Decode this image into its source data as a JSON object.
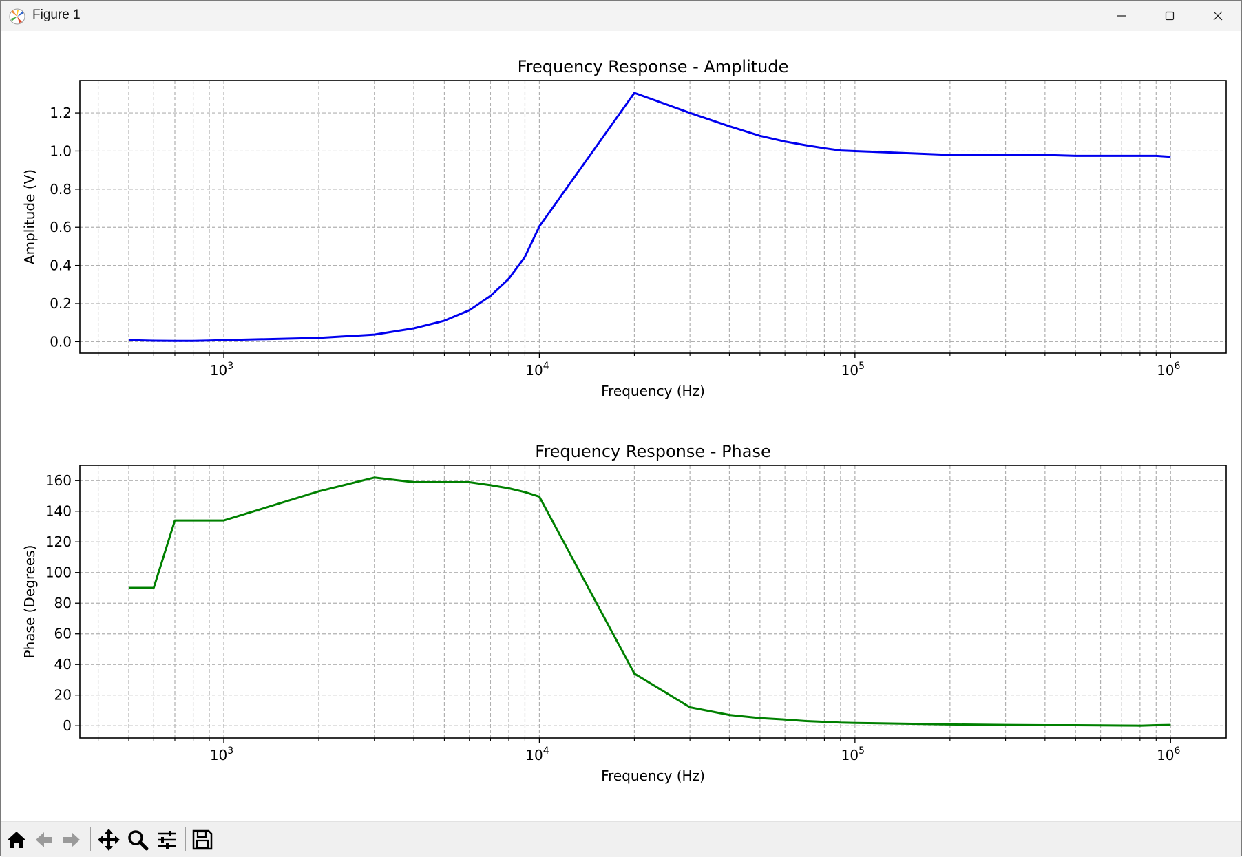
{
  "window": {
    "title": "Figure 1"
  },
  "toolbar": {
    "buttons": [
      {
        "name": "home-button",
        "icon": "home-icon"
      },
      {
        "name": "back-button",
        "icon": "arrow-left-icon"
      },
      {
        "name": "forward-button",
        "icon": "arrow-right-icon"
      },
      {
        "name": "pan-button",
        "icon": "move-icon"
      },
      {
        "name": "zoom-button",
        "icon": "magnifier-icon"
      },
      {
        "name": "configure-subplots-button",
        "icon": "sliders-icon"
      },
      {
        "name": "save-button",
        "icon": "floppy-disk-icon"
      }
    ]
  },
  "chart_data": [
    {
      "type": "line",
      "title": "Frequency Response - Amplitude",
      "xlabel": "Frequency (Hz)",
      "ylabel": "Amplitude (V)",
      "xscale": "log",
      "xlim": [
        350,
        1500000
      ],
      "ylim": [
        -0.06,
        1.37
      ],
      "xticks": [
        1000,
        10000,
        100000,
        1000000
      ],
      "xtick_labels": [
        {
          "base": "10",
          "exp": "3"
        },
        {
          "base": "10",
          "exp": "4"
        },
        {
          "base": "10",
          "exp": "5"
        },
        {
          "base": "10",
          "exp": "6"
        }
      ],
      "yticks": [
        0.0,
        0.2,
        0.4,
        0.6,
        0.8,
        1.0,
        1.2
      ],
      "ytick_labels": [
        "0.0",
        "0.2",
        "0.4",
        "0.6",
        "0.8",
        "1.0",
        "1.2"
      ],
      "grid": true,
      "color": "#0000ee",
      "series": [
        {
          "x": [
            500,
            600,
            700,
            800,
            900,
            1000,
            2000,
            3000,
            4000,
            5000,
            6000,
            7000,
            8000,
            9000,
            10000,
            20000,
            30000,
            40000,
            50000,
            60000,
            70000,
            80000,
            90000,
            100000,
            200000,
            300000,
            400000,
            500000,
            600000,
            700000,
            800000,
            900000,
            1000000
          ],
          "y": [
            0.008,
            0.005,
            0.004,
            0.004,
            0.006,
            0.008,
            0.02,
            0.037,
            0.07,
            0.11,
            0.165,
            0.24,
            0.33,
            0.445,
            0.605,
            1.305,
            1.2,
            1.13,
            1.08,
            1.05,
            1.03,
            1.015,
            1.003,
            1.0,
            0.98,
            0.98,
            0.98,
            0.975,
            0.975,
            0.975,
            0.975,
            0.975,
            0.97
          ]
        }
      ]
    },
    {
      "type": "line",
      "title": "Frequency Response - Phase",
      "xlabel": "Frequency (Hz)",
      "ylabel": "Phase (Degrees)",
      "xscale": "log",
      "xlim": [
        350,
        1500000
      ],
      "ylim": [
        -8,
        170
      ],
      "xticks": [
        1000,
        10000,
        100000,
        1000000
      ],
      "xtick_labels": [
        {
          "base": "10",
          "exp": "3"
        },
        {
          "base": "10",
          "exp": "4"
        },
        {
          "base": "10",
          "exp": "5"
        },
        {
          "base": "10",
          "exp": "6"
        }
      ],
      "yticks": [
        0,
        20,
        40,
        60,
        80,
        100,
        120,
        140,
        160
      ],
      "ytick_labels": [
        "0",
        "20",
        "40",
        "60",
        "80",
        "100",
        "120",
        "140",
        "160"
      ],
      "grid": true,
      "color": "#008000",
      "series": [
        {
          "x": [
            500,
            600,
            700,
            800,
            900,
            1000,
            2000,
            3000,
            4000,
            5000,
            6000,
            7000,
            8000,
            9000,
            10000,
            20000,
            30000,
            40000,
            50000,
            60000,
            70000,
            80000,
            90000,
            100000,
            200000,
            300000,
            400000,
            500000,
            600000,
            700000,
            800000,
            900000,
            1000000
          ],
          "y": [
            90,
            90,
            134,
            134,
            134,
            134,
            153,
            162,
            159,
            159,
            159,
            157,
            155,
            152.5,
            149.5,
            34,
            12,
            7,
            5,
            4,
            3,
            2.5,
            2,
            1.8,
            0.8,
            0.5,
            0.3,
            0.3,
            0.2,
            0.1,
            0.0,
            0.3,
            0.5
          ]
        }
      ]
    }
  ]
}
